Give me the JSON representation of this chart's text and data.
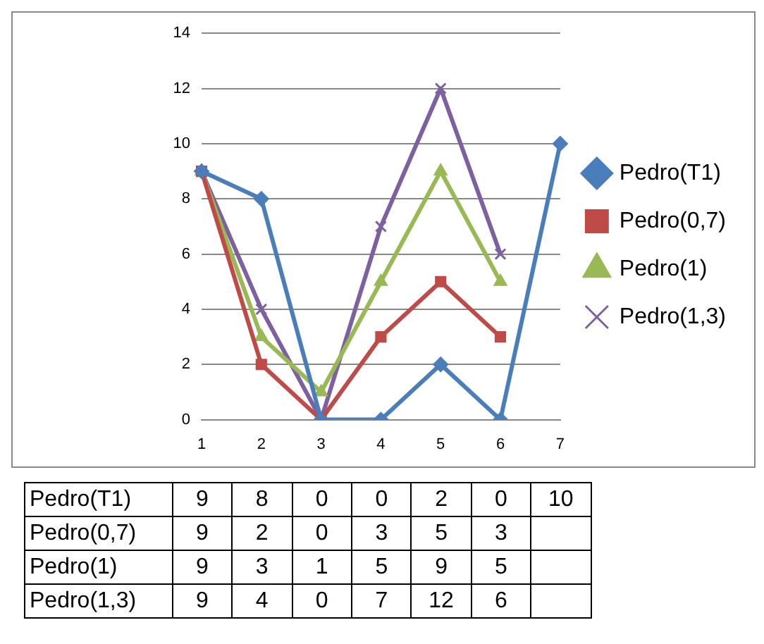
{
  "chart_data": {
    "type": "line",
    "categories": [
      "1",
      "2",
      "3",
      "4",
      "5",
      "6",
      "7"
    ],
    "series": [
      {
        "name": "Pedro(T1)",
        "color": "#4a7ebb",
        "marker": "diamond",
        "values": [
          9,
          8,
          0,
          0,
          2,
          0,
          10
        ]
      },
      {
        "name": "Pedro(0,7)",
        "color": "#be4b48",
        "marker": "square",
        "values": [
          9,
          2,
          0,
          3,
          5,
          3,
          null
        ]
      },
      {
        "name": "Pedro(1)",
        "color": "#98b954",
        "marker": "triangle",
        "values": [
          9,
          3,
          1,
          5,
          9,
          5,
          null
        ]
      },
      {
        "name": "Pedro(1,3)",
        "color": "#7d60a0",
        "marker": "cross",
        "values": [
          9,
          4,
          0,
          7,
          12,
          6,
          null
        ]
      }
    ],
    "ylim": [
      0,
      14
    ],
    "yticks": [
      0,
      2,
      4,
      6,
      8,
      10,
      12,
      14
    ],
    "grid": "y",
    "legend": "right",
    "data_labels": true
  }
}
